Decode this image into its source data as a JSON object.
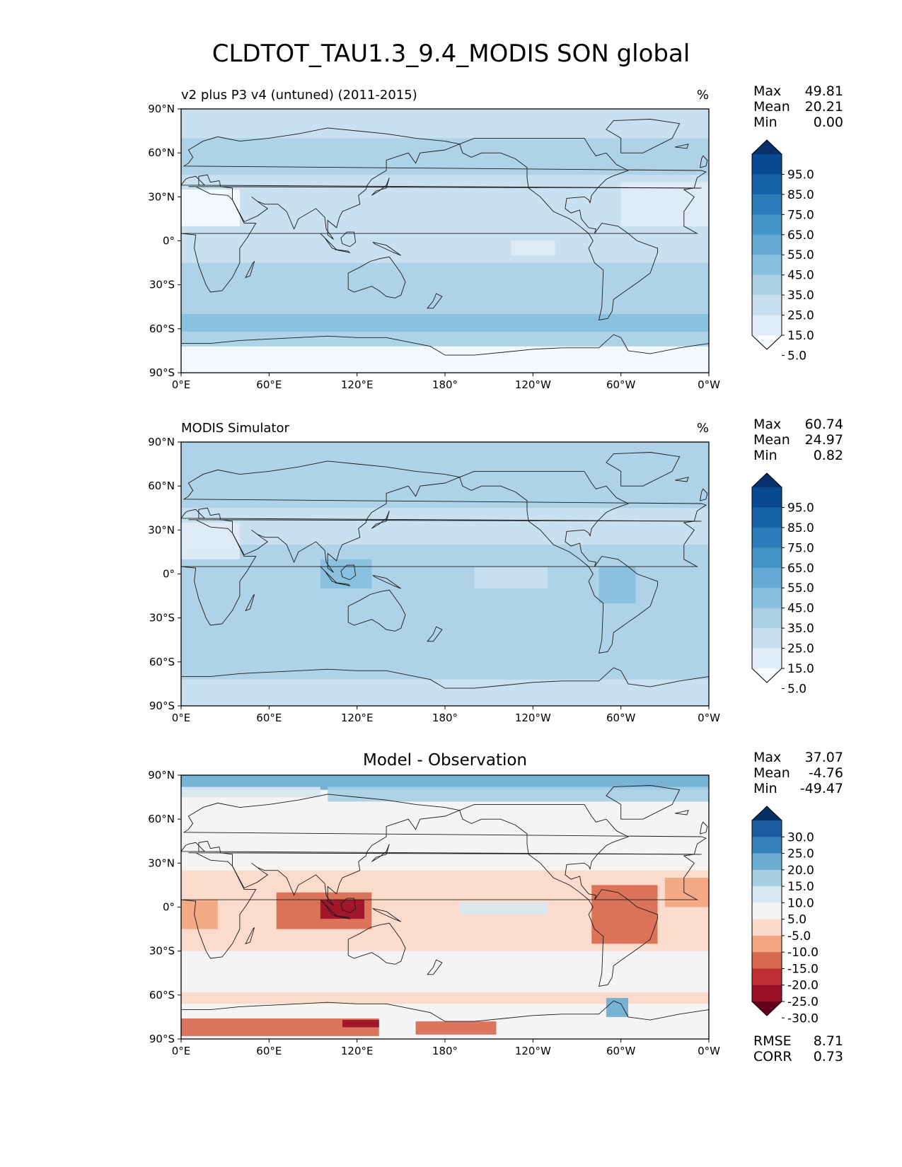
{
  "figure": {
    "title": "CLDTOT_TAU1.3_9.4_MODIS SON global"
  },
  "panels": [
    {
      "id": "test",
      "title": "v2 plus P3 v4 (untuned) (2011-2015)",
      "title_align": "left",
      "units": "%",
      "stats": [
        {
          "label": "Max",
          "value": "49.81"
        },
        {
          "label": "Mean",
          "value": "20.21"
        },
        {
          "label": "Min",
          "value": "0.00"
        }
      ],
      "colorbar_labels": [
        "95.0",
        "85.0",
        "75.0",
        "65.0",
        "55.0",
        "45.0",
        "35.0",
        "25.0",
        "15.0",
        "5.0"
      ],
      "palette": [
        "#08306b",
        "#084a91",
        "#1763aa",
        "#2c7cba",
        "#4594c7",
        "#64a9d3",
        "#87bfdd",
        "#abd0e6",
        "#c9dff0",
        "#e0ecf7",
        "#f7fbff"
      ],
      "field": "test"
    },
    {
      "id": "ref",
      "title": "MODIS Simulator",
      "title_align": "left",
      "units": "%",
      "stats": [
        {
          "label": "Max",
          "value": "60.74"
        },
        {
          "label": "Mean",
          "value": "24.97"
        },
        {
          "label": "Min",
          "value": "0.82"
        }
      ],
      "colorbar_labels": [
        "95.0",
        "85.0",
        "75.0",
        "65.0",
        "55.0",
        "45.0",
        "35.0",
        "25.0",
        "15.0",
        "5.0"
      ],
      "palette": [
        "#08306b",
        "#084a91",
        "#1763aa",
        "#2c7cba",
        "#4594c7",
        "#64a9d3",
        "#87bfdd",
        "#abd0e6",
        "#c9dff0",
        "#e0ecf7",
        "#f7fbff"
      ],
      "field": "ref"
    },
    {
      "id": "diff",
      "title": "Model - Observation",
      "title_align": "center",
      "units": "",
      "stats": [
        {
          "label": "Max",
          "value": "37.07"
        },
        {
          "label": "Mean",
          "value": "-4.76"
        },
        {
          "label": "Min",
          "value": "-49.47"
        }
      ],
      "extra_stats": [
        {
          "label": "RMSE",
          "value": "8.71"
        },
        {
          "label": "CORR",
          "value": "0.73"
        }
      ],
      "colorbar_labels": [
        "30.0",
        "25.0",
        "20.0",
        "15.0",
        "10.0",
        "5.0",
        "-5.0",
        "-10.0",
        "-15.0",
        "-20.0",
        "-25.0",
        "-30.0"
      ],
      "palette": [
        "#053061",
        "#1c5c9e",
        "#3683bb",
        "#6bacd0",
        "#a7cfe4",
        "#d6e7f1",
        "#f4f4f4",
        "#fbd9c8",
        "#f3a481",
        "#d9694f",
        "#be2f33",
        "#9b0e25",
        "#67001f"
      ],
      "field": "diff"
    }
  ],
  "chart_data": {
    "type": "heatmap",
    "projection": "plate-carree",
    "x_ticks": [
      "0°E",
      "60°E",
      "120°E",
      "180°",
      "120°W",
      "60°W",
      "0°W"
    ],
    "y_ticks": [
      "90°N",
      "60°N",
      "30°N",
      "0°",
      "30°S",
      "60°S",
      "90°S"
    ],
    "xlim": [
      0,
      360
    ],
    "ylim": [
      -90,
      90
    ],
    "levels": {
      "test": [
        5,
        15,
        25,
        35,
        45,
        55,
        65,
        75,
        85,
        95
      ],
      "ref": [
        5,
        15,
        25,
        35,
        45,
        55,
        65,
        75,
        85,
        95
      ],
      "diff": [
        -30,
        -25,
        -20,
        -15,
        -10,
        -5,
        5,
        10,
        15,
        20,
        25,
        30
      ]
    },
    "regions": [
      {
        "field": "test",
        "lon": [
          0,
          360
        ],
        "lat": [
          -90,
          -72
        ],
        "value": 2
      },
      {
        "field": "test",
        "lon": [
          0,
          360
        ],
        "lat": [
          -72,
          -45
        ],
        "value": 30
      },
      {
        "field": "test",
        "lon": [
          0,
          360
        ],
        "lat": [
          -62,
          -50
        ],
        "value": 40
      },
      {
        "field": "test",
        "lon": [
          0,
          360
        ],
        "lat": [
          -45,
          -15
        ],
        "value": 26
      },
      {
        "field": "test",
        "lon": [
          0,
          360
        ],
        "lat": [
          -15,
          15
        ],
        "value": 22
      },
      {
        "field": "test",
        "lon": [
          0,
          360
        ],
        "lat": [
          15,
          45
        ],
        "value": 16
      },
      {
        "field": "test",
        "lon": [
          0,
          360
        ],
        "lat": [
          45,
          70
        ],
        "value": 26
      },
      {
        "field": "test",
        "lon": [
          0,
          360
        ],
        "lat": [
          70,
          90
        ],
        "value": 18
      },
      {
        "field": "test",
        "lon": [
          0,
          40
        ],
        "lat": [
          10,
          35
        ],
        "value": 4
      },
      {
        "field": "test",
        "lon": [
          225,
          255
        ],
        "lat": [
          -10,
          0
        ],
        "value": 8
      },
      {
        "field": "test",
        "lon": [
          300,
          360
        ],
        "lat": [
          10,
          40
        ],
        "value": 8
      },
      {
        "field": "ref",
        "lon": [
          0,
          360
        ],
        "lat": [
          -90,
          -72
        ],
        "value": 22
      },
      {
        "field": "ref",
        "lon": [
          0,
          360
        ],
        "lat": [
          -72,
          -40
        ],
        "value": 34
      },
      {
        "field": "ref",
        "lon": [
          0,
          360
        ],
        "lat": [
          -40,
          -15
        ],
        "value": 28
      },
      {
        "field": "ref",
        "lon": [
          0,
          360
        ],
        "lat": [
          -15,
          20
        ],
        "value": 30
      },
      {
        "field": "ref",
        "lon": [
          0,
          360
        ],
        "lat": [
          20,
          45
        ],
        "value": 22
      },
      {
        "field": "ref",
        "lon": [
          0,
          360
        ],
        "lat": [
          45,
          90
        ],
        "value": 28
      },
      {
        "field": "ref",
        "lon": [
          95,
          130
        ],
        "lat": [
          -10,
          10
        ],
        "value": 42
      },
      {
        "field": "ref",
        "lon": [
          285,
          310
        ],
        "lat": [
          -20,
          5
        ],
        "value": 40
      },
      {
        "field": "ref",
        "lon": [
          200,
          250
        ],
        "lat": [
          -10,
          5
        ],
        "value": 18
      },
      {
        "field": "ref",
        "lon": [
          0,
          40
        ],
        "lat": [
          10,
          35
        ],
        "value": 8
      },
      {
        "field": "diff",
        "lon": [
          0,
          360
        ],
        "lat": [
          -90,
          -90
        ],
        "value": 0
      },
      {
        "field": "diff",
        "lon": [
          0,
          360
        ],
        "lat": [
          -66,
          -58
        ],
        "value": -7
      },
      {
        "field": "diff",
        "lon": [
          0,
          360
        ],
        "lat": [
          -30,
          25
        ],
        "value": -7
      },
      {
        "field": "diff",
        "lon": [
          0,
          360
        ],
        "lat": [
          80,
          90
        ],
        "value": 18
      },
      {
        "field": "diff",
        "lon": [
          100,
          360
        ],
        "lat": [
          72,
          82
        ],
        "value": 14
      },
      {
        "field": "diff",
        "lon": [
          0,
          95
        ],
        "lat": [
          75,
          82
        ],
        "value": 8
      },
      {
        "field": "diff",
        "lon": [
          0,
          135
        ],
        "lat": [
          -88,
          -76
        ],
        "value": -20
      },
      {
        "field": "diff",
        "lon": [
          110,
          135
        ],
        "lat": [
          -82,
          -77
        ],
        "value": -30
      },
      {
        "field": "diff",
        "lon": [
          160,
          215
        ],
        "lat": [
          -87,
          -78
        ],
        "value": -16
      },
      {
        "field": "diff",
        "lon": [
          65,
          130
        ],
        "lat": [
          -15,
          10
        ],
        "value": -16
      },
      {
        "field": "diff",
        "lon": [
          95,
          125
        ],
        "lat": [
          -8,
          5
        ],
        "value": -28
      },
      {
        "field": "diff",
        "lon": [
          0,
          25
        ],
        "lat": [
          -15,
          5
        ],
        "value": -14
      },
      {
        "field": "diff",
        "lon": [
          280,
          325
        ],
        "lat": [
          -25,
          15
        ],
        "value": -16
      },
      {
        "field": "diff",
        "lon": [
          330,
          360
        ],
        "lat": [
          0,
          20
        ],
        "value": -14
      },
      {
        "field": "diff",
        "lon": [
          190,
          250
        ],
        "lat": [
          -5,
          3
        ],
        "value": 6
      },
      {
        "field": "diff",
        "lon": [
          290,
          305
        ],
        "lat": [
          -75,
          -62
        ],
        "value": 18
      }
    ]
  }
}
